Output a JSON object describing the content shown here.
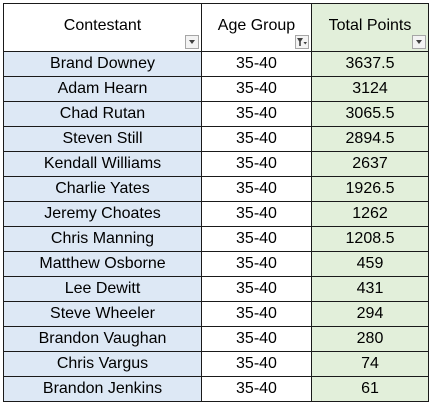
{
  "headers": {
    "contestant": "Contestant",
    "age_group": "Age Group",
    "total_points": "Total Points"
  },
  "header_controls": {
    "contestant": "dropdown-arrow",
    "age_group": "filter-applied",
    "total_points": "dropdown-arrow"
  },
  "colors": {
    "name_fill": "#dde8f5",
    "points_fill": "#e2efda",
    "border": "#1a1a1a"
  },
  "rows": [
    {
      "name": "Brand Downey",
      "age": "35-40",
      "points": "3637.5"
    },
    {
      "name": "Adam Hearn",
      "age": "35-40",
      "points": "3124"
    },
    {
      "name": "Chad Rutan",
      "age": "35-40",
      "points": "3065.5"
    },
    {
      "name": "Steven Still",
      "age": "35-40",
      "points": "2894.5"
    },
    {
      "name": "Kendall Williams",
      "age": "35-40",
      "points": "2637"
    },
    {
      "name": "Charlie Yates",
      "age": "35-40",
      "points": "1926.5"
    },
    {
      "name": "Jeremy Choates",
      "age": "35-40",
      "points": "1262"
    },
    {
      "name": "Chris Manning",
      "age": "35-40",
      "points": "1208.5"
    },
    {
      "name": "Matthew Osborne",
      "age": "35-40",
      "points": "459"
    },
    {
      "name": "Lee Dewitt",
      "age": "35-40",
      "points": "431"
    },
    {
      "name": "Steve Wheeler",
      "age": "35-40",
      "points": "294"
    },
    {
      "name": "Brandon Vaughan",
      "age": "35-40",
      "points": "280"
    },
    {
      "name": "Chris Vargus",
      "age": "35-40",
      "points": "74"
    },
    {
      "name": "Brandon Jenkins",
      "age": "35-40",
      "points": "61"
    }
  ]
}
